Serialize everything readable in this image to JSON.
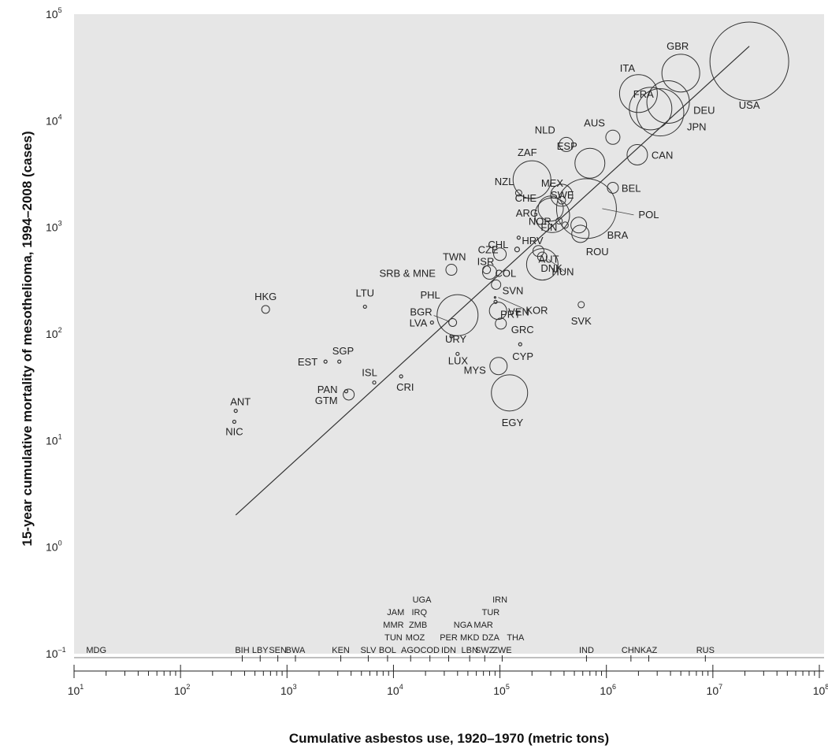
{
  "chart_data": {
    "type": "scatter",
    "xlabel": "Cumulative asbestos use, 1920–1970 (metric tons)",
    "ylabel": "15-year cumulative mortality of mesothelioma, 1994–2008 (cases)",
    "x_scale": "log",
    "y_scale": "log",
    "xlim": [
      10,
      100000000
    ],
    "ylim": [
      0.1,
      100000
    ],
    "x_ticks": [
      {
        "value": 10,
        "base": "10",
        "exp": "1"
      },
      {
        "value": 100,
        "base": "10",
        "exp": "2"
      },
      {
        "value": 1000,
        "base": "10",
        "exp": "3"
      },
      {
        "value": 10000,
        "base": "10",
        "exp": "4"
      },
      {
        "value": 100000,
        "base": "10",
        "exp": "5"
      },
      {
        "value": 1000000,
        "base": "10",
        "exp": "6"
      },
      {
        "value": 10000000,
        "base": "10",
        "exp": "7"
      },
      {
        "value": 100000000,
        "base": "10",
        "exp": "8"
      }
    ],
    "y_ticks": [
      {
        "value": 0.1,
        "base": "10",
        "exp": "–1"
      },
      {
        "value": 1,
        "base": "10",
        "exp": "0"
      },
      {
        "value": 10,
        "base": "10",
        "exp": "1"
      },
      {
        "value": 100,
        "base": "10",
        "exp": "2"
      },
      {
        "value": 1000,
        "base": "10",
        "exp": "3"
      },
      {
        "value": 10000,
        "base": "10",
        "exp": "4"
      },
      {
        "value": 100000,
        "base": "10",
        "exp": "5"
      }
    ],
    "grid": false,
    "regression_line": {
      "x": [
        330,
        22000000
      ],
      "y": [
        2,
        50000
      ]
    },
    "points": [
      {
        "label": "USA",
        "x": 22000000,
        "y": 36000,
        "r": 50
      },
      {
        "label": "GBR",
        "x": 5000000,
        "y": 28000,
        "r": 24
      },
      {
        "label": "ITA",
        "x": 2000000,
        "y": 18000,
        "r": 24
      },
      {
        "label": "DEU",
        "x": 3800000,
        "y": 15000,
        "r": 27
      },
      {
        "label": "JPN",
        "x": 3200000,
        "y": 12000,
        "r": 30
      },
      {
        "label": "AUS",
        "x": 1150000,
        "y": 7000,
        "r": 9
      },
      {
        "label": "FRA",
        "x": 2600000,
        "y": 13000,
        "r": 27
      },
      {
        "label": "NLD",
        "x": 420000,
        "y": 6000,
        "r": 9
      },
      {
        "label": "ESP",
        "x": 700000,
        "y": 4000,
        "r": 19
      },
      {
        "label": "CAN",
        "x": 1950000,
        "y": 4800,
        "r": 13
      },
      {
        "label": "ZAF",
        "x": 200000,
        "y": 2800,
        "r": 24
      },
      {
        "label": "MEX",
        "x": 380000,
        "y": 2000,
        "r": 14
      },
      {
        "label": "BEL",
        "x": 1150000,
        "y": 2350,
        "r": 7
      },
      {
        "label": "SWE",
        "x": 380000,
        "y": 1800,
        "r": 5
      },
      {
        "label": "POL",
        "x": 650000,
        "y": 1500,
        "r": 38
      },
      {
        "label": "BRA",
        "x": 550000,
        "y": 1050,
        "r": 10
      },
      {
        "label": "CHE",
        "x": 300000,
        "y": 1500,
        "r": 16
      },
      {
        "label": "ARG",
        "x": 310000,
        "y": 1300,
        "r": 22
      },
      {
        "label": "NZL",
        "x": 150000,
        "y": 2100,
        "r": 4
      },
      {
        "label": "NOR",
        "x": 360000,
        "y": 1150,
        "r": 4
      },
      {
        "label": "FIN",
        "x": 410000,
        "y": 1050,
        "r": 4
      },
      {
        "label": "HRV",
        "x": 150000,
        "y": 800,
        "r": 2
      },
      {
        "label": "AUT",
        "x": 230000,
        "y": 600,
        "r": 7
      },
      {
        "label": "CZE",
        "x": 100000,
        "y": 560,
        "r": 8
      },
      {
        "label": "DNK",
        "x": 250000,
        "y": 530,
        "r": 6
      },
      {
        "label": "ROU",
        "x": 570000,
        "y": 870,
        "r": 11
      },
      {
        "label": "HUN",
        "x": 250000,
        "y": 450,
        "r": 20
      },
      {
        "label": "CHL",
        "x": 145000,
        "y": 620,
        "r": 3
      },
      {
        "label": "ISR",
        "x": 75000,
        "y": 400,
        "r": 5
      },
      {
        "label": "TWN",
        "x": 35000,
        "y": 400,
        "r": 7
      },
      {
        "label": "SRB & MNE",
        "x": 35000,
        "y": 400,
        "r": 0
      },
      {
        "label": "COL",
        "x": 80000,
        "y": 380,
        "r": 9
      },
      {
        "label": "SVN",
        "x": 92000,
        "y": 290,
        "r": 6
      },
      {
        "label": "KOR",
        "x": 90000,
        "y": 220,
        "r": 1
      },
      {
        "label": "PRT",
        "x": 91000,
        "y": 200,
        "r": 2
      },
      {
        "label": "VEN",
        "x": 96000,
        "y": 165,
        "r": 11
      },
      {
        "label": "PHL",
        "x": 40000,
        "y": 150,
        "r": 26
      },
      {
        "label": "GRC",
        "x": 102000,
        "y": 125,
        "r": 7
      },
      {
        "label": "SVK",
        "x": 580000,
        "y": 188,
        "r": 4
      },
      {
        "label": "BGR",
        "x": 36000,
        "y": 128,
        "r": 5
      },
      {
        "label": "LVA",
        "x": 23000,
        "y": 128,
        "r": 2
      },
      {
        "label": "URY",
        "x": 35000,
        "y": 95,
        "r": 2
      },
      {
        "label": "LUX",
        "x": 40000,
        "y": 65,
        "r": 2
      },
      {
        "label": "CYP",
        "x": 155000,
        "y": 80,
        "r": 2
      },
      {
        "label": "MYS",
        "x": 97000,
        "y": 50,
        "r": 11
      },
      {
        "label": "EGY",
        "x": 123000,
        "y": 28,
        "r": 23
      },
      {
        "label": "HKG",
        "x": 630,
        "y": 170,
        "r": 5
      },
      {
        "label": "LTU",
        "x": 5400,
        "y": 180,
        "r": 2
      },
      {
        "label": "SGP",
        "x": 3100,
        "y": 55,
        "r": 2
      },
      {
        "label": "EST",
        "x": 2300,
        "y": 55,
        "r": 2
      },
      {
        "label": "ISL",
        "x": 6600,
        "y": 35,
        "r": 2
      },
      {
        "label": "CRI",
        "x": 11800,
        "y": 40,
        "r": 2
      },
      {
        "label": "PAN",
        "x": 3600,
        "y": 29,
        "r": 2
      },
      {
        "label": "GTM",
        "x": 3800,
        "y": 27,
        "r": 7
      },
      {
        "label": "ANT",
        "x": 330,
        "y": 19,
        "r": 2
      },
      {
        "label": "NIC",
        "x": 320,
        "y": 15,
        "r": 2
      }
    ],
    "no_data_countries": {
      "baseline_value": 0.1,
      "items": [
        {
          "label": "MDG",
          "x": 13,
          "row": 0
        },
        {
          "label": "BIH",
          "x": 380,
          "row": 0
        },
        {
          "label": "LBY",
          "x": 560,
          "row": 0
        },
        {
          "label": "SEN",
          "x": 820,
          "row": 0
        },
        {
          "label": "BWA",
          "x": 1200,
          "row": 0
        },
        {
          "label": "KEN",
          "x": 3200,
          "row": 0
        },
        {
          "label": "SLV",
          "x": 5800,
          "row": 0
        },
        {
          "label": "BOL",
          "x": 8800,
          "row": 0
        },
        {
          "label": "AGO",
          "x": 14500,
          "row": 0
        },
        {
          "label": "COD",
          "x": 22000,
          "row": 0
        },
        {
          "label": "IDN",
          "x": 33000,
          "row": 0
        },
        {
          "label": "LBN",
          "x": 52000,
          "row": 0
        },
        {
          "label": "SWZ",
          "x": 72000,
          "row": 0
        },
        {
          "label": "ZWE",
          "x": 105000,
          "row": 0
        },
        {
          "label": "IND",
          "x": 650000,
          "row": 0
        },
        {
          "label": "CHN",
          "x": 1700000,
          "row": 0
        },
        {
          "label": "KAZ",
          "x": 2500000,
          "row": 0
        },
        {
          "label": "RUS",
          "x": 8500000,
          "row": 0
        },
        {
          "label": "PER",
          "x": 33000,
          "row": 1
        },
        {
          "label": "MKD",
          "x": 52000,
          "row": 1
        },
        {
          "label": "DZA",
          "x": 82000,
          "row": 1
        },
        {
          "label": "THA",
          "x": 140000,
          "row": 1
        },
        {
          "label": "TUN",
          "x": 10000,
          "row": 1
        },
        {
          "label": "MOZ",
          "x": 16000,
          "row": 1
        },
        {
          "label": "NGA",
          "x": 45000,
          "row": 2
        },
        {
          "label": "MAR",
          "x": 70000,
          "row": 2
        },
        {
          "label": "MMR",
          "x": 10000,
          "row": 2
        },
        {
          "label": "ZMB",
          "x": 17000,
          "row": 2
        },
        {
          "label": "JAM",
          "x": 10500,
          "row": 3
        },
        {
          "label": "IRQ",
          "x": 17500,
          "row": 3
        },
        {
          "label": "TUR",
          "x": 82000,
          "row": 3
        },
        {
          "label": "UGA",
          "x": 18500,
          "row": 4
        },
        {
          "label": "IRN",
          "x": 100000,
          "row": 4
        }
      ]
    }
  }
}
